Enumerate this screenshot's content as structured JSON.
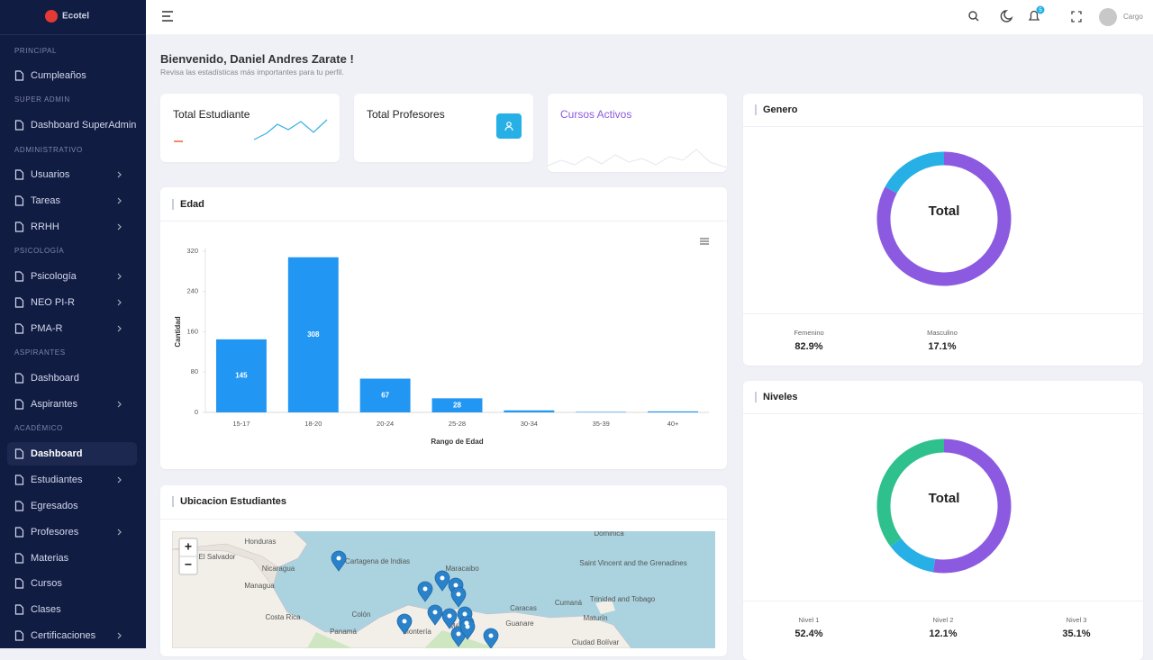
{
  "sidebar": {
    "logo": "Ecotel",
    "sections": [
      {
        "title": "PRINCIPAL",
        "items": [
          {
            "label": "Cumpleaños"
          }
        ]
      },
      {
        "title": "SUPER ADMIN",
        "items": [
          {
            "label": "Dashboard SuperAdmin"
          }
        ]
      },
      {
        "title": "ADMINISTRATIVO",
        "items": [
          {
            "label": "Usuarios",
            "submenu": true
          },
          {
            "label": "Tareas",
            "submenu": true
          },
          {
            "label": "RRHH",
            "submenu": true
          }
        ]
      },
      {
        "title": "PSICOLOGÍA",
        "items": [
          {
            "label": "Psicología",
            "submenu": true
          },
          {
            "label": "NEO PI-R",
            "submenu": true
          },
          {
            "label": "PMA-R",
            "submenu": true
          }
        ]
      },
      {
        "title": "ASPIRANTES",
        "items": [
          {
            "label": "Dashboard"
          },
          {
            "label": "Aspirantes",
            "submenu": true
          }
        ]
      },
      {
        "title": "ACADÉMICO",
        "items": [
          {
            "label": "Dashboard",
            "active": true
          },
          {
            "label": "Estudiantes",
            "submenu": true
          },
          {
            "label": "Egresados"
          },
          {
            "label": "Profesores",
            "submenu": true
          },
          {
            "label": "Materias"
          },
          {
            "label": "Cursos"
          },
          {
            "label": "Clases"
          },
          {
            "label": "Certificaciones",
            "submenu": true
          }
        ]
      }
    ]
  },
  "header": {
    "notifications": 5,
    "user": "Cargo"
  },
  "welcome": {
    "title": "Bienvenido, Daniel Andres Zarate !",
    "subtitle": "Revisa las estadísticas más importantes para tu perfil."
  },
  "cards": [
    {
      "title": "Total Estudiante"
    },
    {
      "title": "Total Profesores"
    },
    {
      "title": "Cursos Activos"
    }
  ],
  "edad": {
    "title": "Edad",
    "chart_data": {
      "type": "bar",
      "categories": [
        "15-17",
        "18-20",
        "20-24",
        "25-28",
        "30-34",
        "35-39",
        "40+"
      ],
      "values": [
        145,
        308,
        67,
        28,
        4,
        1,
        2
      ],
      "color": "#2196f3",
      "xlabel": "Rango de Edad",
      "ylabel": "Cantidad",
      "ylim": [
        0,
        320
      ],
      "yticks": [
        0,
        80,
        160,
        240,
        320
      ],
      "grid": false
    }
  },
  "ubicacion": {
    "title": "Ubicacion Estudiantes",
    "zoom_in": "+",
    "zoom_out": "−",
    "places": [
      "Honduras",
      "El Salvador",
      "Nicaragua",
      "Managua",
      "Costa Rica",
      "Panamá",
      "Colón",
      "Cartagena de Indias",
      "Maracaibo",
      "Caracas",
      "Cumaná",
      "Trinidad and Tobago",
      "Maturín",
      "Guanare",
      "Ciudad Bolívar",
      "Montería",
      "Mérida",
      "Saint Vincent and the Grenadines",
      "Dominica"
    ]
  },
  "genero": {
    "title": "Genero",
    "chart_data": {
      "type": "donut",
      "center_label": "Total",
      "categories": [
        "Femenino",
        "Masculino"
      ],
      "values": [
        82.9,
        17.1
      ],
      "value_labels": [
        "82.9%",
        "17.1%"
      ],
      "colors": [
        "#8c5ae0",
        "#26b0e6"
      ]
    }
  },
  "niveles": {
    "title": "Niveles",
    "chart_data": {
      "type": "donut",
      "center_label": "Total",
      "categories": [
        "Nivel 1",
        "Nivel 2",
        "Nivel 3"
      ],
      "values": [
        52.4,
        12.1,
        35.1
      ],
      "value_labels": [
        "52.4%",
        "12.1%",
        "35.1%"
      ],
      "colors": [
        "#8c5ae0",
        "#26b0e6",
        "#2ec08d"
      ]
    }
  }
}
